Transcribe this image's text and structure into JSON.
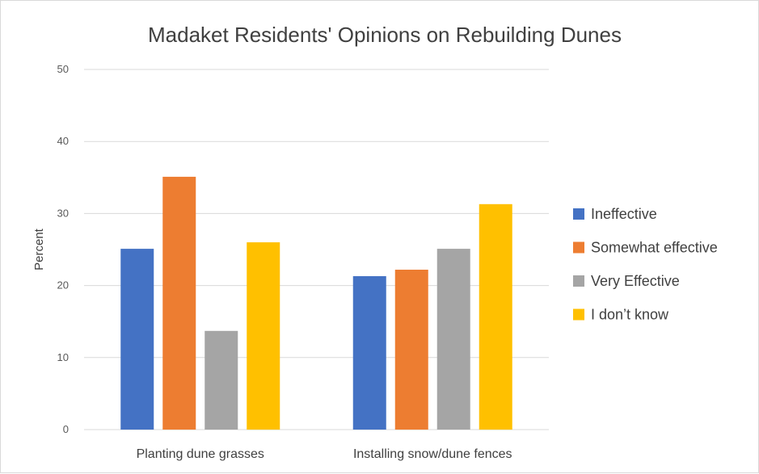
{
  "chart_data": {
    "type": "bar",
    "title": "Madaket Residents' Opinions on Rebuilding Dunes",
    "xlabel": "",
    "ylabel": "Percent",
    "ylim": [
      0,
      50
    ],
    "yticks": [
      0,
      10,
      20,
      30,
      40,
      50
    ],
    "grid": true,
    "legend_position": "right",
    "categories": [
      "Planting dune grasses",
      "Installing snow/dune fences"
    ],
    "series": [
      {
        "name": "Ineffective",
        "color": "#4472C4",
        "values": [
          25.1,
          21.3
        ]
      },
      {
        "name": "Somewhat effective",
        "color": "#ED7D31",
        "values": [
          35.1,
          22.2
        ]
      },
      {
        "name": "Very Effective",
        "color": "#A5A5A5",
        "values": [
          13.7,
          25.1
        ]
      },
      {
        "name": "I don’t know",
        "color": "#FFC000",
        "values": [
          26.0,
          31.3
        ]
      }
    ]
  }
}
